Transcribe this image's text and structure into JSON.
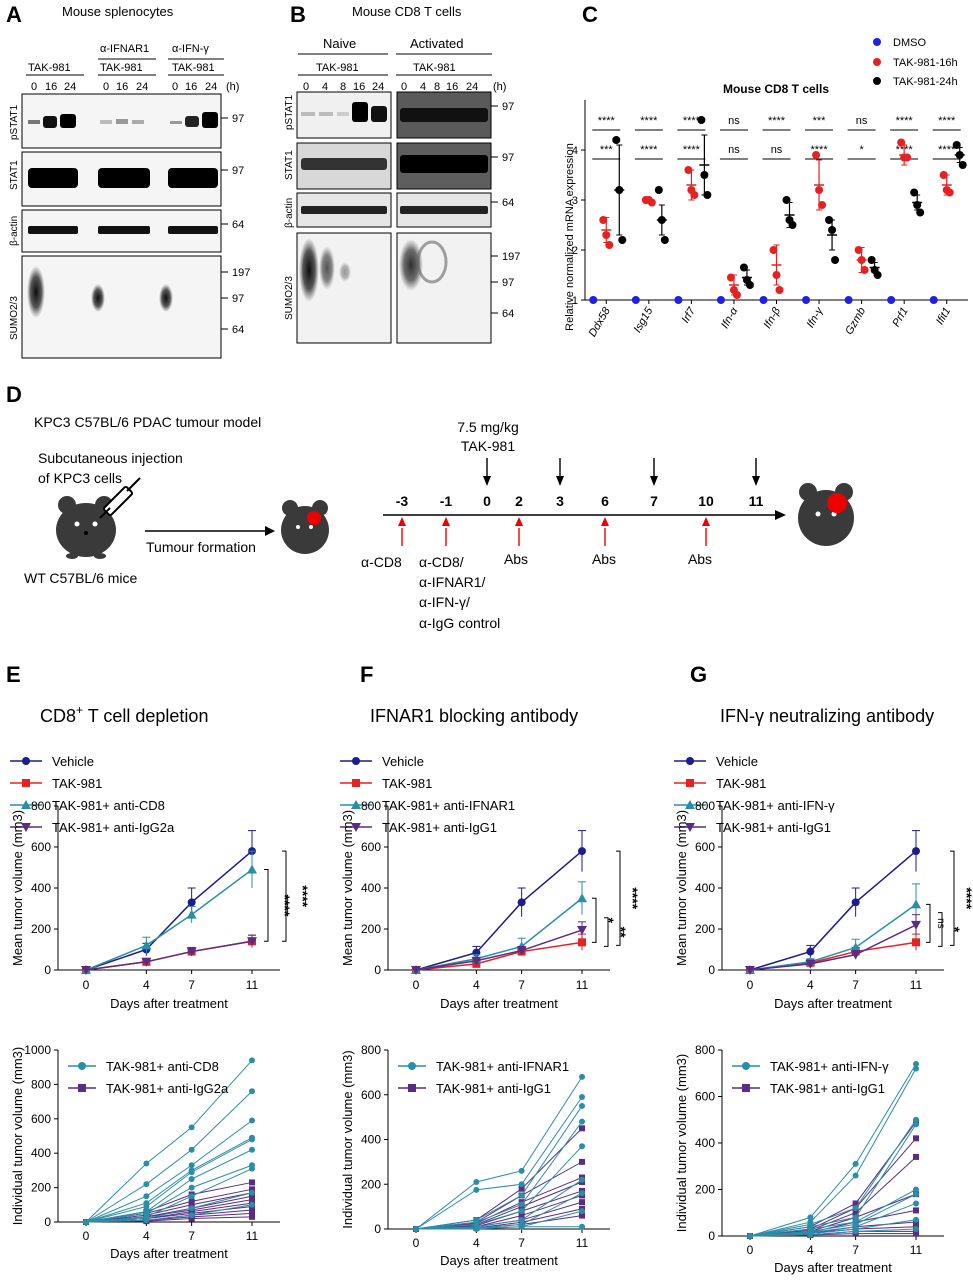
{
  "panelA": {
    "letter": "A",
    "title": "Mouse splenocytes",
    "groups": [
      {
        "label": "",
        "drug": "TAK-981"
      },
      {
        "label": "α-IFNAR1",
        "drug": "TAK-981"
      },
      {
        "label": "α-IFN-γ",
        "drug": "TAK-981"
      }
    ],
    "timepoints": [
      "0",
      "16",
      "24"
    ],
    "hours_unit": "(h)",
    "blots": [
      "pSTAT1",
      "STAT1",
      "β-actin",
      "SUMO2/3"
    ],
    "mw_markers": {
      "pSTAT1": [
        "97"
      ],
      "STAT1": [
        "97"
      ],
      "actin": [
        "64"
      ],
      "sumo": [
        "197",
        "97",
        "64"
      ]
    }
  },
  "panelB": {
    "letter": "B",
    "title": "Mouse CD8 T cells",
    "conditions": [
      "Naive",
      "Activated"
    ],
    "drug": "TAK-981",
    "timepoints": [
      "0",
      "4",
      "8",
      "16",
      "24"
    ],
    "hours_unit": "(h)",
    "blots": [
      "pSTAT1",
      "STAT1",
      "β-actin",
      "SUMO2/3"
    ],
    "mw_markers": {
      "pSTAT1": [
        "97"
      ],
      "STAT1": [
        "97"
      ],
      "actin": [
        "64"
      ],
      "sumo": [
        "197",
        "97",
        "64"
      ]
    }
  },
  "panelC": {
    "letter": "C",
    "legend": [
      {
        "name": "DMSO",
        "color": "#1f1fe8"
      },
      {
        "name": "TAK-981-16h",
        "color": "#e62121"
      },
      {
        "name": "TAK-981-24h",
        "color": "#000000"
      }
    ],
    "sig_rows": [
      [
        "****",
        "****",
        "****",
        "ns",
        "****",
        "***",
        "ns",
        "****",
        "****"
      ],
      [
        "***",
        "****",
        "****",
        "ns",
        "ns",
        "****",
        "*",
        "****",
        "****"
      ]
    ]
  },
  "panelD": {
    "letter": "D",
    "model_title": "KPC3 C57BL/6 PDAC tumour model",
    "injection_line1": "Subcutaneous injection",
    "injection_line2": "of  KPC3 cells",
    "mice_label": "WT C57BL/6 mice",
    "formation_label": "Tumour formation",
    "dose_line1": "7.5 mg/kg",
    "dose_line2": "TAK-981",
    "days": [
      "-3",
      "-1",
      "0",
      "2",
      "3",
      "6",
      "7",
      "10",
      "11"
    ],
    "ab_label_1": "α-CD8",
    "ab_label_2": [
      "α-CD8/",
      "α-IFNAR1/",
      "α-IFN-γ/",
      "α-IgG control"
    ],
    "abs_label": "Abs"
  },
  "chart_data": [
    {
      "panel": "C",
      "type": "scatter",
      "title": "Mouse CD8 T cells",
      "ylabel": "Relative normalized mRNA expression",
      "ylim": [
        1,
        5
      ],
      "yticks": [
        1,
        2,
        3,
        4
      ],
      "categories": [
        "Ddx58",
        "Isg15",
        "Irf7",
        "Ifn-α",
        "Ifn-β",
        "Ifn-γ",
        "Gzmb",
        "Prf1",
        "Ifit1"
      ],
      "series": [
        {
          "name": "DMSO",
          "points": [
            [
              1
            ],
            [
              1
            ],
            [
              1
            ],
            [
              1
            ],
            [
              1
            ],
            [
              1
            ],
            [
              1
            ],
            [
              1
            ],
            [
              1
            ]
          ],
          "mean": [
            1,
            1,
            1,
            1,
            1,
            1,
            1,
            1,
            1
          ],
          "sem": [
            0,
            0,
            0,
            0,
            0,
            0,
            0,
            0,
            0
          ]
        },
        {
          "name": "TAK-981-16h",
          "points": [
            [
              2.6,
              2.3,
              2.1
            ],
            [
              3.0,
              3.0,
              2.95
            ],
            [
              3.6,
              3.2,
              3.1
            ],
            [
              1.45,
              1.2,
              1.1
            ],
            [
              2.0,
              1.5,
              1.2
            ],
            [
              3.9,
              3.2,
              2.9
            ],
            [
              2.0,
              1.8,
              1.6
            ],
            [
              4.15,
              3.85,
              3.85
            ],
            [
              3.5,
              3.2,
              3.15
            ]
          ],
          "mean": [
            2.4,
            3.0,
            3.3,
            1.3,
            1.7,
            3.3,
            1.8,
            3.9,
            3.3
          ],
          "sem": [
            0.25,
            0.05,
            0.3,
            0.2,
            0.4,
            0.5,
            0.25,
            0.2,
            0.2
          ]
        },
        {
          "name": "TAK-981-24h",
          "points": [
            [
              4.2,
              3.2,
              2.2
            ],
            [
              3.2,
              2.6,
              2.2
            ],
            [
              4.6,
              3.5,
              3.1
            ],
            [
              1.65,
              1.4,
              1.3
            ],
            [
              3.0,
              2.6,
              2.5
            ],
            [
              2.6,
              2.4,
              1.8
            ],
            [
              1.8,
              1.6,
              1.5
            ],
            [
              3.15,
              2.9,
              2.75
            ],
            [
              4.1,
              3.9,
              3.7
            ]
          ],
          "mean": [
            3.2,
            2.6,
            3.7,
            1.45,
            2.7,
            2.3,
            1.65,
            2.95,
            3.9
          ],
          "sem": [
            0.9,
            0.3,
            0.6,
            0.15,
            0.25,
            0.3,
            0.1,
            0.15,
            0.15
          ]
        }
      ]
    },
    {
      "panel": "E",
      "letter": "E",
      "type": "line",
      "title": "CD8",
      "title_sup": "+",
      "title_rest": " T cell depletion",
      "ylabel": "Mean tumor volume (mm3)",
      "xlabel": "Days after treatment",
      "x": [
        0,
        4,
        7,
        11
      ],
      "ylim": [
        0,
        800
      ],
      "yticks": [
        0,
        200,
        400,
        600,
        800
      ],
      "series": [
        {
          "name": "Vehicle",
          "color": "#1c1c8c",
          "marker": "circle",
          "values": [
            0,
            100,
            330,
            580
          ],
          "err": [
            0,
            30,
            70,
            100
          ]
        },
        {
          "name": "TAK-981",
          "color": "#e62121",
          "marker": "square",
          "values": [
            0,
            40,
            90,
            140
          ],
          "err": [
            0,
            10,
            20,
            30
          ]
        },
        {
          "name": "TAK-981+ anti-CD8",
          "color": "#2a8fa6",
          "marker": "triangle",
          "values": [
            0,
            120,
            270,
            490
          ],
          "err": [
            0,
            40,
            40,
            90
          ]
        },
        {
          "name": "TAK-981+ anti-IgG2a",
          "color": "#5b2c83",
          "marker": "triangle-down",
          "values": [
            0,
            40,
            90,
            140
          ],
          "err": [
            0,
            10,
            20,
            30
          ]
        }
      ],
      "significance": [
        "****",
        "****"
      ],
      "individual": {
        "ylabel": "Individual tumor volume (mm3)",
        "xlabel": "Days after treatment",
        "x": [
          0,
          4,
          7,
          11
        ],
        "ylim": [
          0,
          1000
        ],
        "yticks": [
          0,
          200,
          400,
          600,
          800,
          1000
        ],
        "series": [
          {
            "name": "TAK-981+ anti-CD8",
            "color": "#2a8fa6",
            "marker": "circle",
            "lines": [
              [
                0,
                340,
                550,
                940
              ],
              [
                0,
                220,
                420,
                760
              ],
              [
                0,
                150,
                330,
                590
              ],
              [
                0,
                110,
                300,
                490
              ],
              [
                0,
                90,
                290,
                480
              ],
              [
                0,
                60,
                250,
                420
              ],
              [
                0,
                50,
                200,
                330
              ],
              [
                0,
                30,
                150,
                310
              ],
              [
                0,
                20,
                80,
                170
              ],
              [
                0,
                10,
                40,
                100
              ]
            ]
          },
          {
            "name": "TAK-981+ anti-IgG2a",
            "color": "#5b2c83",
            "marker": "square",
            "lines": [
              [
                0,
                60,
                160,
                230
              ],
              [
                0,
                50,
                120,
                190
              ],
              [
                0,
                40,
                100,
                170
              ],
              [
                0,
                30,
                80,
                150
              ],
              [
                0,
                30,
                70,
                130
              ],
              [
                0,
                20,
                60,
                110
              ],
              [
                0,
                20,
                50,
                90
              ],
              [
                0,
                10,
                40,
                70
              ],
              [
                0,
                10,
                30,
                50
              ],
              [
                0,
                5,
                20,
                30
              ]
            ]
          }
        ]
      }
    },
    {
      "panel": "F",
      "letter": "F",
      "type": "line",
      "title": "IFNAR1 blocking antibody",
      "ylabel": "Mean tumor volume (mm3)",
      "xlabel": "Days after treatment",
      "x": [
        0,
        4,
        7,
        11
      ],
      "ylim": [
        0,
        800
      ],
      "yticks": [
        0,
        200,
        400,
        600,
        800
      ],
      "series": [
        {
          "name": "Vehicle",
          "color": "#1c1c8c",
          "marker": "circle",
          "values": [
            0,
            85,
            330,
            580
          ],
          "err": [
            0,
            30,
            70,
            100
          ]
        },
        {
          "name": "TAK-981",
          "color": "#e62121",
          "marker": "square",
          "values": [
            0,
            30,
            90,
            135
          ],
          "err": [
            0,
            10,
            20,
            40
          ]
        },
        {
          "name": "TAK-981+ anti-IFNAR1",
          "color": "#2a8fa6",
          "marker": "triangle",
          "values": [
            0,
            55,
            115,
            350
          ],
          "err": [
            0,
            20,
            40,
            80
          ]
        },
        {
          "name": "TAK-981+ anti-IgG1",
          "color": "#5b2c83",
          "marker": "triangle-down",
          "values": [
            0,
            45,
            95,
            195
          ],
          "err": [
            0,
            15,
            20,
            40
          ]
        }
      ],
      "significance": [
        "*",
        "**",
        "****"
      ],
      "individual": {
        "ylabel": "Individual tumor volume (mm3)",
        "xlabel": "Days after treatment",
        "x": [
          0,
          4,
          7,
          11
        ],
        "ylim": [
          0,
          800
        ],
        "yticks": [
          0,
          200,
          400,
          600,
          800
        ],
        "series": [
          {
            "name": "TAK-981+ anti-IFNAR1",
            "color": "#2a8fa6",
            "marker": "circle",
            "lines": [
              [
                0,
                210,
                260,
                680
              ],
              [
                0,
                175,
                200,
                590
              ],
              [
                0,
                40,
                150,
                550
              ],
              [
                0,
                30,
                110,
                480
              ],
              [
                0,
                20,
                80,
                370
              ],
              [
                0,
                10,
                40,
                220
              ],
              [
                0,
                5,
                20,
                160
              ],
              [
                0,
                5,
                10,
                80
              ],
              [
                0,
                0,
                10,
                10
              ]
            ]
          },
          {
            "name": "TAK-981+ anti-IgG1",
            "color": "#5b2c83",
            "marker": "square",
            "lines": [
              [
                0,
                40,
                180,
                450
              ],
              [
                0,
                30,
                150,
                300
              ],
              [
                0,
                25,
                120,
                230
              ],
              [
                0,
                20,
                100,
                210
              ],
              [
                0,
                15,
                80,
                170
              ],
              [
                0,
                10,
                60,
                150
              ],
              [
                0,
                10,
                40,
                120
              ],
              [
                0,
                5,
                30,
                90
              ],
              [
                0,
                5,
                20,
                60
              ]
            ]
          }
        ]
      }
    },
    {
      "panel": "G",
      "letter": "G",
      "type": "line",
      "title": "IFN-γ neutralizing antibody",
      "ylabel": "Mean tumor volume (mm3)",
      "xlabel": "Days after treatment",
      "x": [
        0,
        4,
        7,
        11
      ],
      "ylim": [
        0,
        800
      ],
      "yticks": [
        0,
        200,
        400,
        600,
        800
      ],
      "series": [
        {
          "name": "Vehicle",
          "color": "#1c1c8c",
          "marker": "circle",
          "values": [
            0,
            90,
            330,
            580
          ],
          "err": [
            0,
            30,
            70,
            100
          ]
        },
        {
          "name": "TAK-981",
          "color": "#e62121",
          "marker": "square",
          "values": [
            0,
            35,
            90,
            135
          ],
          "err": [
            0,
            10,
            20,
            40
          ]
        },
        {
          "name": "TAK-981+ anti-IFN-γ",
          "color": "#2a8fa6",
          "marker": "triangle",
          "values": [
            0,
            40,
            110,
            320
          ],
          "err": [
            0,
            15,
            40,
            100
          ]
        },
        {
          "name": "TAK-981+ anti-IgG1",
          "color": "#5b2c83",
          "marker": "triangle-down",
          "values": [
            0,
            30,
            75,
            220
          ],
          "err": [
            0,
            10,
            20,
            50
          ]
        }
      ],
      "significance": [
        "ns",
        "*",
        "****"
      ],
      "individual": {
        "ylabel": "Individual tumor volume (mm3)",
        "xlabel": "Days after treatment",
        "x": [
          0,
          4,
          7,
          11
        ],
        "ylim": [
          0,
          800
        ],
        "yticks": [
          0,
          200,
          400,
          600,
          800
        ],
        "series": [
          {
            "name": "TAK-981+ anti-IFN-γ",
            "color": "#2a8fa6",
            "marker": "circle",
            "lines": [
              [
                0,
                80,
                310,
                740
              ],
              [
                0,
                60,
                260,
                720
              ],
              [
                0,
                50,
                120,
                500
              ],
              [
                0,
                40,
                80,
                480
              ],
              [
                0,
                30,
                60,
                200
              ],
              [
                0,
                20,
                50,
                180
              ],
              [
                0,
                15,
                40,
                140
              ],
              [
                0,
                10,
                30,
                70
              ],
              [
                0,
                5,
                20,
                30
              ]
            ]
          },
          {
            "name": "TAK-981+ anti-IgG1",
            "color": "#5b2c83",
            "marker": "square",
            "lines": [
              [
                0,
                40,
                140,
                490
              ],
              [
                0,
                30,
                120,
                420
              ],
              [
                0,
                25,
                100,
                340
              ],
              [
                0,
                20,
                80,
                180
              ],
              [
                0,
                15,
                60,
                110
              ],
              [
                0,
                10,
                40,
                60
              ],
              [
                0,
                10,
                30,
                40
              ],
              [
                0,
                5,
                20,
                20
              ],
              [
                0,
                5,
                10,
                10
              ]
            ]
          }
        ]
      }
    }
  ]
}
